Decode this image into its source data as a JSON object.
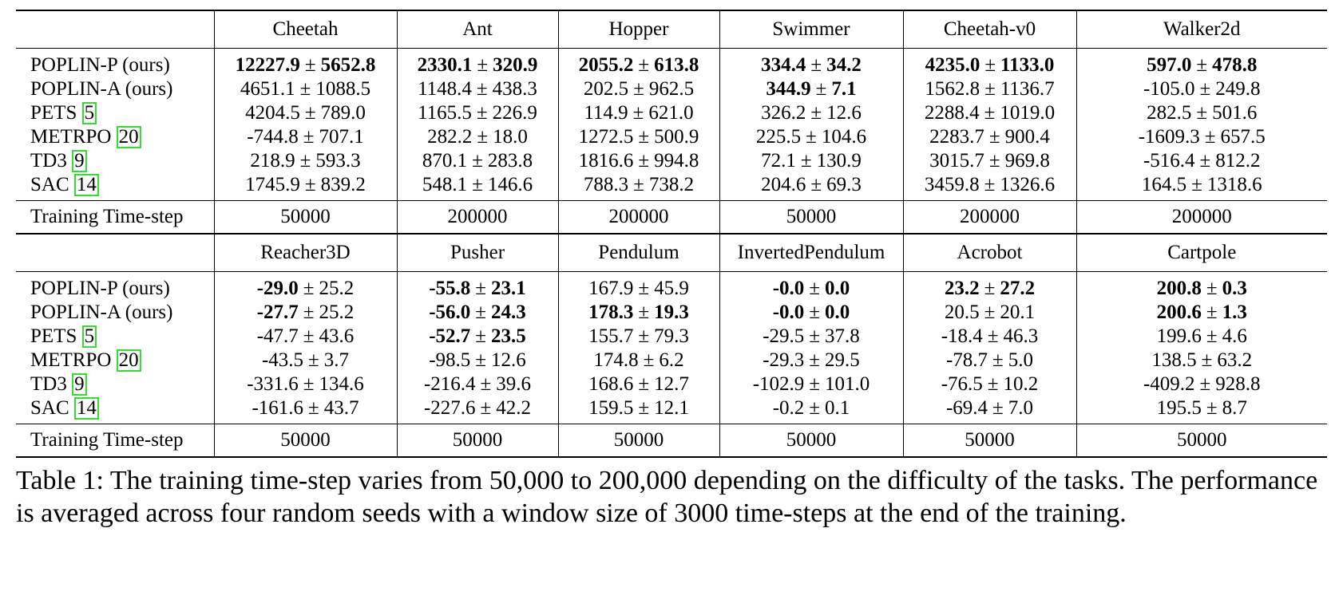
{
  "blocks": [
    {
      "envs": [
        "Cheetah",
        "Ant",
        "Hopper",
        "Swimmer",
        "Cheetah-v0",
        "Walker2d"
      ],
      "rows": [
        {
          "method": "POPLIN-P (ours)",
          "ref": "",
          "cells": [
            {
              "mean": "12227.9",
              "std": "5652.8",
              "bold_mean": true,
              "bold_std": true
            },
            {
              "mean": "2330.1",
              "std": "320.9",
              "bold_mean": true,
              "bold_std": true
            },
            {
              "mean": "2055.2",
              "std": "613.8",
              "bold_mean": true,
              "bold_std": true
            },
            {
              "mean": "334.4",
              "std": "34.2",
              "bold_mean": true,
              "bold_std": true
            },
            {
              "mean": "4235.0",
              "std": "1133.0",
              "bold_mean": true,
              "bold_std": true
            },
            {
              "mean": "597.0",
              "std": "478.8",
              "bold_mean": true,
              "bold_std": true
            }
          ]
        },
        {
          "method": "POPLIN-A (ours)",
          "ref": "",
          "cells": [
            {
              "mean": "4651.1",
              "std": "1088.5"
            },
            {
              "mean": "1148.4",
              "std": "438.3"
            },
            {
              "mean": "202.5",
              "std": "962.5"
            },
            {
              "mean": "344.9",
              "std": "7.1",
              "bold_mean": true,
              "bold_std": true
            },
            {
              "mean": "1562.8",
              "std": "1136.7"
            },
            {
              "mean": "-105.0",
              "std": "249.8"
            }
          ]
        },
        {
          "method": "PETS ",
          "ref": "5",
          "cells": [
            {
              "mean": "4204.5",
              "std": "789.0"
            },
            {
              "mean": "1165.5",
              "std": "226.9"
            },
            {
              "mean": "114.9",
              "std": "621.0"
            },
            {
              "mean": "326.2",
              "std": "12.6"
            },
            {
              "mean": "2288.4",
              "std": "1019.0"
            },
            {
              "mean": "282.5",
              "std": "501.6"
            }
          ]
        },
        {
          "method": "METRPO ",
          "ref": "20",
          "cells": [
            {
              "mean": "-744.8",
              "std": "707.1"
            },
            {
              "mean": "282.2",
              "std": "18.0"
            },
            {
              "mean": "1272.5",
              "std": "500.9"
            },
            {
              "mean": "225.5",
              "std": "104.6"
            },
            {
              "mean": "2283.7",
              "std": "900.4"
            },
            {
              "mean": "-1609.3",
              "std": "657.5"
            }
          ]
        },
        {
          "method": "TD3 ",
          "ref": "9",
          "cells": [
            {
              "mean": "218.9",
              "std": "593.3"
            },
            {
              "mean": "870.1",
              "std": "283.8"
            },
            {
              "mean": "1816.6",
              "std": "994.8"
            },
            {
              "mean": "72.1",
              "std": "130.9"
            },
            {
              "mean": "3015.7",
              "std": "969.8"
            },
            {
              "mean": "-516.4",
              "std": "812.2"
            }
          ]
        },
        {
          "method": "SAC ",
          "ref": "14",
          "cells": [
            {
              "mean": "1745.9",
              "std": "839.2"
            },
            {
              "mean": "548.1",
              "std": "146.6"
            },
            {
              "mean": "788.3",
              "std": "738.2"
            },
            {
              "mean": "204.6",
              "std": "69.3"
            },
            {
              "mean": "3459.8",
              "std": "1326.6"
            },
            {
              "mean": "164.5",
              "std": "1318.6"
            }
          ]
        }
      ],
      "timestep_label": "Training Time-step",
      "timesteps": [
        "50000",
        "200000",
        "200000",
        "50000",
        "200000",
        "200000"
      ]
    },
    {
      "envs": [
        "Reacher3D",
        "Pusher",
        "Pendulum",
        "InvertedPendulum",
        "Acrobot",
        "Cartpole"
      ],
      "rows": [
        {
          "method": "POPLIN-P (ours)",
          "ref": "",
          "cells": [
            {
              "mean": "-29.0",
              "std": "25.2",
              "bold_mean": true
            },
            {
              "mean": "-55.8",
              "std": "23.1",
              "bold_mean": true,
              "bold_std": true
            },
            {
              "mean": "167.9",
              "std": "45.9"
            },
            {
              "mean": "-0.0",
              "std": "0.0",
              "bold_mean": true,
              "bold_std": true
            },
            {
              "mean": "23.2",
              "std": "27.2",
              "bold_mean": true,
              "bold_std": true
            },
            {
              "mean": "200.8",
              "std": "0.3",
              "bold_mean": true,
              "bold_std": true
            }
          ]
        },
        {
          "method": "POPLIN-A (ours)",
          "ref": "",
          "cells": [
            {
              "mean": "-27.7",
              "std": "25.2",
              "bold_mean": true
            },
            {
              "mean": "-56.0",
              "std": "24.3",
              "bold_mean": true,
              "bold_std": true
            },
            {
              "mean": "178.3",
              "std": "19.3",
              "bold_mean": true,
              "bold_std": true
            },
            {
              "mean": "-0.0",
              "std": "0.0",
              "bold_mean": true,
              "bold_std": true
            },
            {
              "mean": "20.5",
              "std": "20.1"
            },
            {
              "mean": "200.6",
              "std": "1.3",
              "bold_mean": true,
              "bold_std": true
            }
          ]
        },
        {
          "method": "PETS ",
          "ref": "5",
          "cells": [
            {
              "mean": "-47.7",
              "std": "43.6"
            },
            {
              "mean": "-52.7",
              "std": "23.5",
              "bold_mean": true,
              "bold_std": true
            },
            {
              "mean": "155.7",
              "std": "79.3"
            },
            {
              "mean": "-29.5",
              "std": "37.8"
            },
            {
              "mean": "-18.4",
              "std": "46.3"
            },
            {
              "mean": "199.6",
              "std": "4.6"
            }
          ]
        },
        {
          "method": "METRPO ",
          "ref": "20",
          "cells": [
            {
              "mean": "-43.5",
              "std": "3.7"
            },
            {
              "mean": "-98.5",
              "std": "12.6"
            },
            {
              "mean": "174.8",
              "std": "6.2"
            },
            {
              "mean": "-29.3",
              "std": "29.5"
            },
            {
              "mean": "-78.7",
              "std": "5.0"
            },
            {
              "mean": "138.5",
              "std": "63.2"
            }
          ]
        },
        {
          "method": "TD3 ",
          "ref": "9",
          "cells": [
            {
              "mean": "-331.6",
              "std": "134.6"
            },
            {
              "mean": "-216.4",
              "std": "39.6"
            },
            {
              "mean": "168.6",
              "std": "12.7"
            },
            {
              "mean": "-102.9",
              "std": "101.0"
            },
            {
              "mean": "-76.5",
              "std": "10.2"
            },
            {
              "mean": "-409.2",
              "std": "928.8"
            }
          ]
        },
        {
          "method": "SAC ",
          "ref": "14",
          "cells": [
            {
              "mean": "-161.6",
              "std": "43.7"
            },
            {
              "mean": "-227.6",
              "std": "42.2"
            },
            {
              "mean": "159.5",
              "std": "12.1"
            },
            {
              "mean": "-0.2",
              "std": "0.1"
            },
            {
              "mean": "-69.4",
              "std": "7.0"
            },
            {
              "mean": "195.5",
              "std": "8.7"
            }
          ]
        }
      ],
      "timestep_label": "Training Time-step",
      "timesteps": [
        "50000",
        "50000",
        "50000",
        "50000",
        "50000",
        "50000"
      ]
    }
  ],
  "pm_symbol": "±",
  "caption": "Table 1: The training time-step varies from 50,000 to 200,000 depending on the difficulty of the tasks. The performance is averaged across four random seeds with a window size of 3000 time-steps at the end of the training."
}
